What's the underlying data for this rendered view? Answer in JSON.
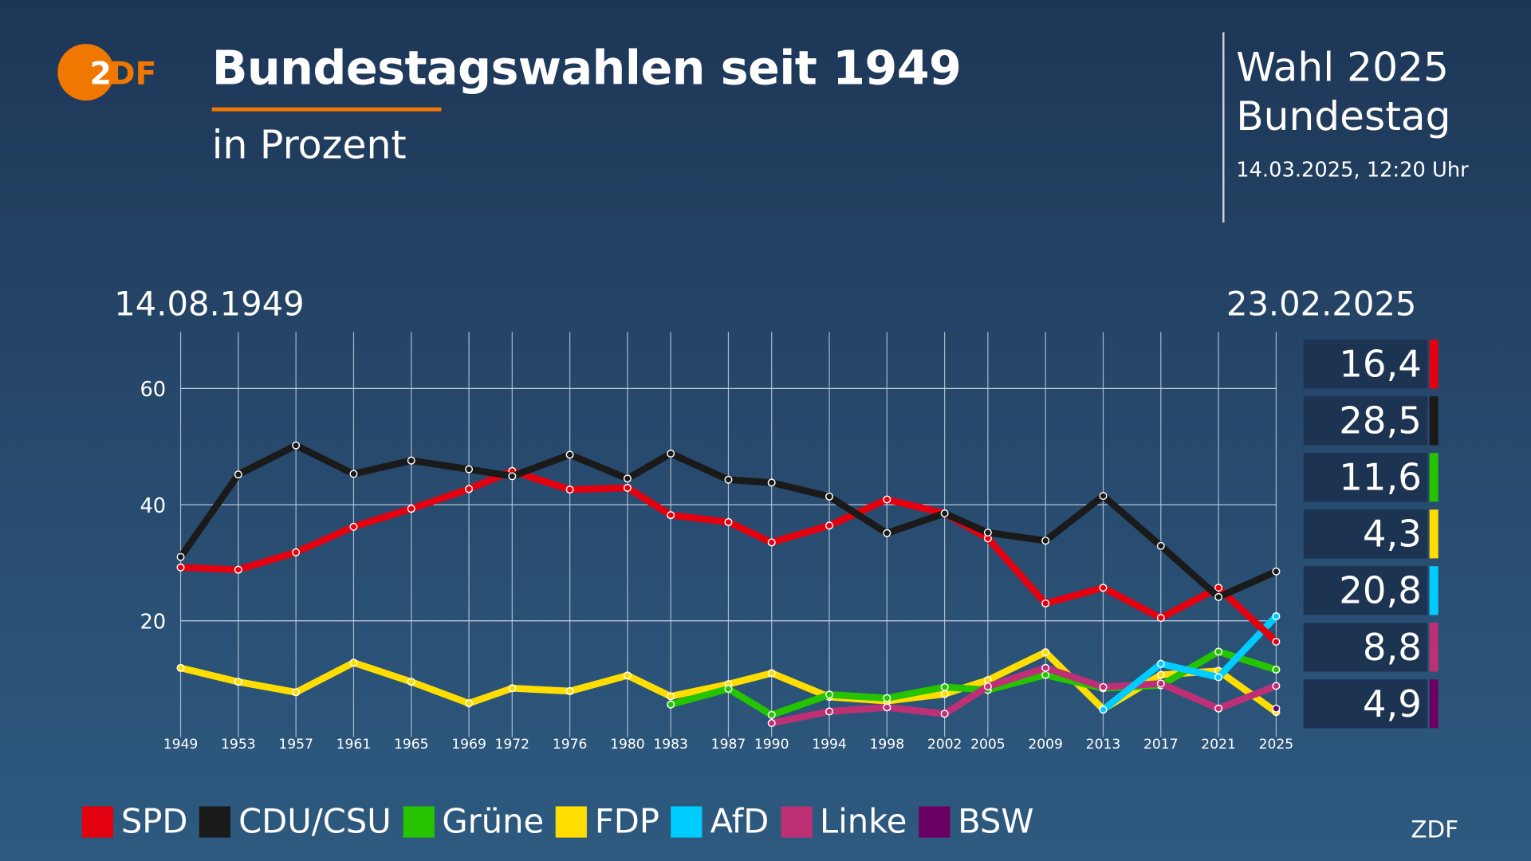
{
  "header": {
    "title": "Bundestagswahlen seit 1949",
    "subtitle": "in Prozent",
    "side_title_1": "Wahl 2025",
    "side_title_2": "Bundestag",
    "timestamp": "14.03.2025, 12:20 Uhr",
    "logo": "ZDF"
  },
  "source": "ZDF",
  "chart_data": {
    "type": "line",
    "start_date_label": "14.08.1949",
    "end_date_label": "23.02.2025",
    "ylim": [
      0,
      68
    ],
    "yticks": [
      20,
      40,
      60
    ],
    "grid": true,
    "legend_position": "bottom",
    "categories": [
      "1949",
      "1953",
      "1957",
      "1961",
      "1965",
      "1969",
      "1972",
      "1976",
      "1980",
      "1983",
      "1987",
      "1990",
      "1994",
      "1998",
      "2002",
      "2005",
      "2009",
      "2013",
      "2017",
      "2021",
      "2025"
    ],
    "series": [
      {
        "name": "SPD",
        "color": "#e3000f",
        "latest": "16,4",
        "values": [
          29.2,
          28.8,
          31.8,
          36.2,
          39.3,
          42.7,
          45.8,
          42.6,
          42.9,
          38.2,
          37.0,
          33.5,
          36.4,
          40.9,
          38.5,
          34.2,
          23.0,
          25.7,
          20.5,
          25.7,
          16.4
        ]
      },
      {
        "name": "CDU/CSU",
        "color": "#1a1a1a",
        "latest": "28,5",
        "values": [
          31.0,
          45.2,
          50.2,
          45.3,
          47.6,
          46.1,
          44.9,
          48.6,
          44.5,
          48.8,
          44.3,
          43.8,
          41.4,
          35.1,
          38.5,
          35.2,
          33.8,
          41.5,
          32.9,
          24.1,
          28.5
        ]
      },
      {
        "name": "Grüne",
        "color": "#26c400",
        "latest": "11,6",
        "values": [
          null,
          null,
          null,
          null,
          null,
          null,
          null,
          null,
          null,
          5.6,
          8.3,
          3.8,
          7.3,
          6.7,
          8.6,
          8.1,
          10.7,
          8.4,
          8.9,
          14.7,
          11.6
        ]
      },
      {
        "name": "FDP",
        "color": "#ffdd00",
        "latest": "4,3",
        "values": [
          11.9,
          9.5,
          7.7,
          12.8,
          9.5,
          5.8,
          8.4,
          7.9,
          10.6,
          7.0,
          9.1,
          11.0,
          6.9,
          6.2,
          7.4,
          9.8,
          14.6,
          4.8,
          10.7,
          11.4,
          4.3
        ]
      },
      {
        "name": "AfD",
        "color": "#00ccff",
        "latest": "20,8",
        "values": [
          null,
          null,
          null,
          null,
          null,
          null,
          null,
          null,
          null,
          null,
          null,
          null,
          null,
          null,
          null,
          null,
          null,
          4.7,
          12.6,
          10.3,
          20.8
        ]
      },
      {
        "name": "Linke",
        "color": "#be3075",
        "latest": "8,8",
        "values": [
          null,
          null,
          null,
          null,
          null,
          null,
          null,
          null,
          null,
          null,
          null,
          2.4,
          4.4,
          5.1,
          4.0,
          8.7,
          11.9,
          8.6,
          9.2,
          4.9,
          8.8
        ]
      },
      {
        "name": "BSW",
        "color": "#6a0064",
        "latest": "4,9",
        "values": [
          null,
          null,
          null,
          null,
          null,
          null,
          null,
          null,
          null,
          null,
          null,
          null,
          null,
          null,
          null,
          null,
          null,
          null,
          null,
          null,
          4.9
        ]
      }
    ]
  }
}
